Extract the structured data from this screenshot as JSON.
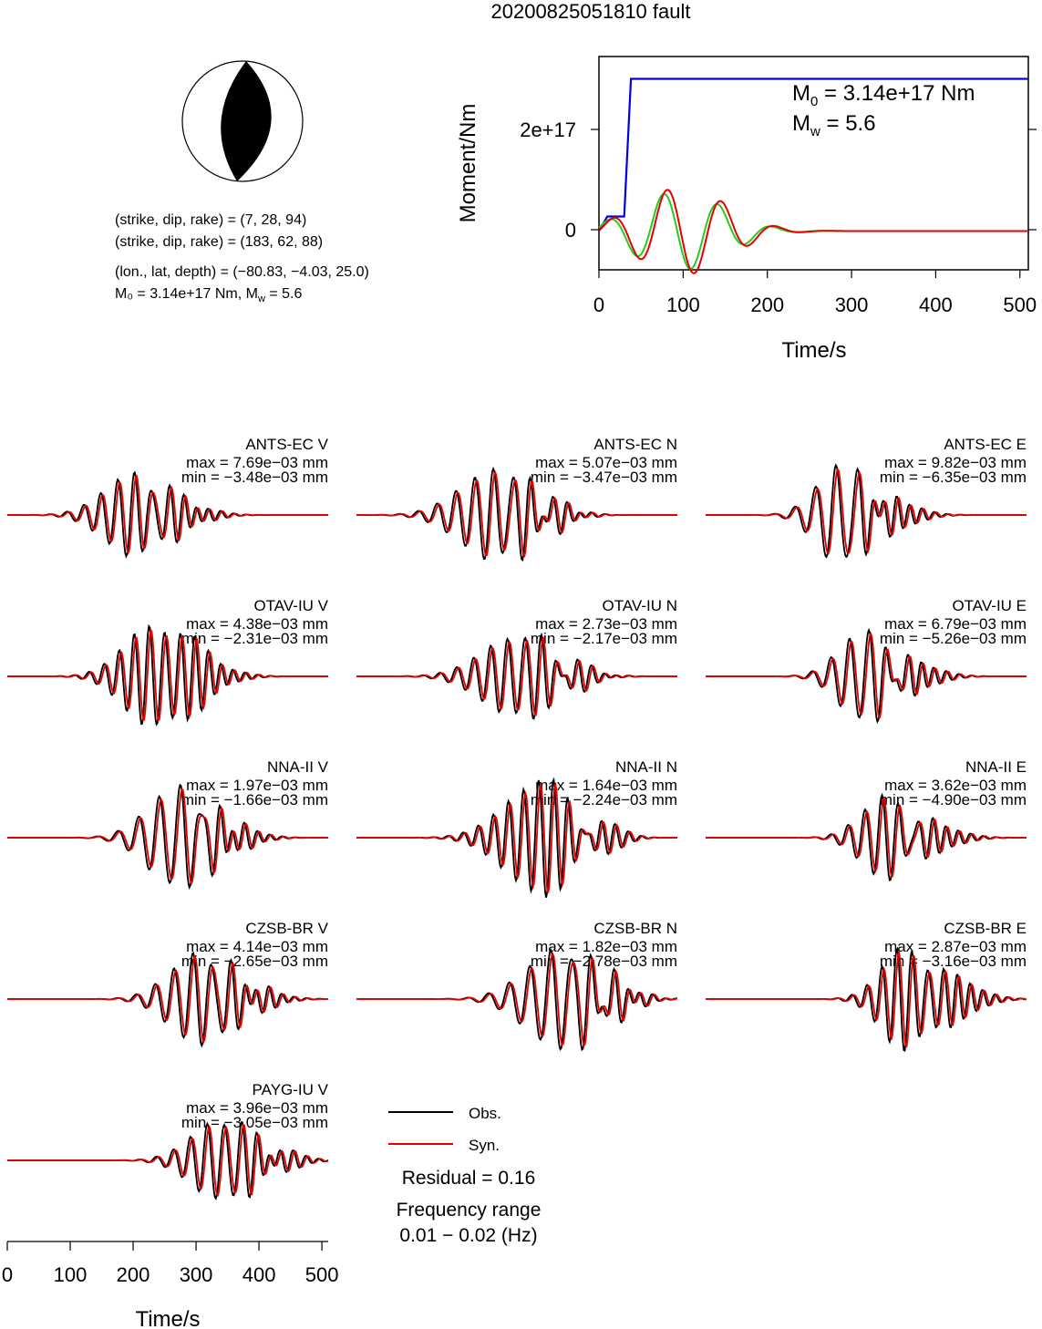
{
  "title": "20200825051810 fault",
  "mechanism": {
    "line1": "(strike, dip, rake) = (7, 28, 94)",
    "line2": "(strike, dip, rake) = (183, 62, 88)",
    "line3": "(lon., lat, depth) = (−80.83, −4.03, 25.0)",
    "line4_m0": "M₀ = 3.14e+17 Nm, M",
    "line4_w": "w",
    "line4_end": " = 5.6"
  },
  "colors": {
    "obs": "#000000",
    "syn": "#e60000",
    "moment": "#0000e6",
    "stf": "#22cc22"
  },
  "moment_panel": {
    "ylabel": "Moment/Nm",
    "xlabel": "Time/s",
    "m0_main": "M",
    "m0_sub": "0",
    "m0_value": " = 3.14e+17 Nm",
    "mw_main": "M",
    "mw_sub": "w",
    "mw_value": " = 5.6",
    "ytick_2e17": "2e+17",
    "ytick_0": "0",
    "xticks": [
      "0",
      "100",
      "200",
      "300",
      "400",
      "500"
    ]
  },
  "chart_data": {
    "type": "line",
    "moment_rate": {
      "x_range": [
        0,
        510
      ],
      "y_range": [
        -8e+16,
        3.6e+17
      ],
      "cumulative_moment": {
        "x": [
          0,
          10,
          30,
          38,
          510
        ],
        "y": [
          0,
          3e+16,
          3e+16,
          3.14e+17,
          3.14e+17
        ]
      }
    },
    "waveform_x_range": [
      0,
      510
    ],
    "stations": [
      {
        "label": "ANTS-EC V",
        "max": "max = 7.69e−03 mm",
        "min": "min = −3.48e−03 mm"
      },
      {
        "label": "ANTS-EC N",
        "max": "max = 5.07e−03 mm",
        "min": "min = −3.47e−03 mm"
      },
      {
        "label": "ANTS-EC E",
        "max": "max = 9.82e−03 mm",
        "min": "min = −6.35e−03 mm"
      },
      {
        "label": "OTAV-IU V",
        "max": "max = 4.38e−03 mm",
        "min": "min = −2.31e−03 mm"
      },
      {
        "label": "OTAV-IU N",
        "max": "max = 2.73e−03 mm",
        "min": "min = −2.17e−03 mm"
      },
      {
        "label": "OTAV-IU E",
        "max": "max = 6.79e−03 mm",
        "min": "min = −5.26e−03 mm"
      },
      {
        "label": "NNA-II V",
        "max": "max = 1.97e−03 mm",
        "min": "min = −1.66e−03 mm"
      },
      {
        "label": "NNA-II N",
        "max": "max = 1.64e−03 mm",
        "min": "min = −2.24e−03 mm"
      },
      {
        "label": "NNA-II E",
        "max": "max = 3.62e−03 mm",
        "min": "min = −4.90e−03 mm"
      },
      {
        "label": "CZSB-BR V",
        "max": "max = 4.14e−03 mm",
        "min": "min = −2.65e−03 mm"
      },
      {
        "label": "CZSB-BR N",
        "max": "max = 1.82e−03 mm",
        "min": "min = −2.78e−03 mm"
      },
      {
        "label": "CZSB-BR E",
        "max": "max = 2.87e−03 mm",
        "min": "min = −3.16e−03 mm"
      },
      {
        "label": "PAYG-IU V",
        "max": "max = 3.96e−03 mm",
        "min": "min = −3.05e−03 mm"
      }
    ]
  },
  "legend": {
    "obs": "Obs.",
    "syn": "Syn.",
    "residual": "Residual = 0.16",
    "freq_title": "Frequency range",
    "freq_value": "0.01 − 0.02 (Hz)"
  },
  "bottom_axis": {
    "xlabel": "Time/s",
    "xticks": [
      "0",
      "100",
      "200",
      "300",
      "400",
      "500"
    ]
  }
}
